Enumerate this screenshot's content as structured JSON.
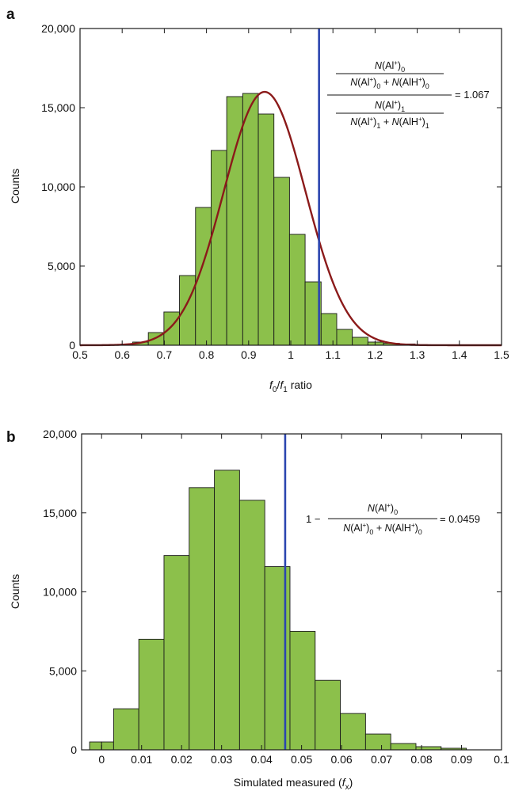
{
  "colors": {
    "bar_fill": "#8cc04b",
    "bar_stroke": "#1a1a1a",
    "fit_curve": "#8b1a1a",
    "marker_line": "#2c46b0",
    "axis": "#1a1a1a"
  },
  "chart_data": [
    {
      "panel_label": "a",
      "type": "bar",
      "bar_form": "histogram",
      "xlabel": {
        "base1": "f",
        "sub1": "0",
        "slash": "/",
        "base2": "f",
        "sub2": "1",
        "rest": " ratio"
      },
      "ylabel": "Counts",
      "xlim": [
        0.5,
        1.5
      ],
      "ylim": [
        0,
        20000
      ],
      "xticks": [
        0.5,
        0.6,
        0.7,
        0.8,
        0.9,
        1,
        1.1,
        1.2,
        1.3,
        1.4,
        1.5
      ],
      "xtick_labels": [
        "0.5",
        "0.6",
        "0.7",
        "0.8",
        "0.9",
        "1",
        "1.1",
        "1.2",
        "1.3",
        "1.4",
        "1.5"
      ],
      "yticks": [
        0,
        5000,
        10000,
        15000,
        20000
      ],
      "ytick_labels": [
        "0",
        "5,000",
        "10,000",
        "15,000",
        "20,000"
      ],
      "bin_edges": [
        0.625,
        0.662,
        0.699,
        0.736,
        0.774,
        0.811,
        0.848,
        0.886,
        0.923,
        0.96,
        0.997,
        1.034,
        1.072,
        1.109,
        1.146,
        1.183,
        1.22,
        1.258,
        1.295,
        1.332
      ],
      "counts": [
        200,
        800,
        2100,
        4400,
        8700,
        12300,
        15700,
        15900,
        14600,
        10600,
        7000,
        4000,
        2000,
        1000,
        500,
        200,
        120,
        80,
        30
      ],
      "fit_curve": {
        "type": "gaussian",
        "mean": 0.938,
        "sd": 0.097,
        "peak": 16000
      },
      "marker_x": 1.067,
      "annotation": {
        "frac1": {
          "top": {
            "n": "N",
            "open": "(Al",
            "sup": "+",
            "close": ")",
            "sub": "0"
          }
        },
        "lines": {
          "num_num": [
            "N",
            "(Al",
            "+",
            ")",
            "0"
          ],
          "num_den": [
            "N",
            "(Al",
            "+",
            ")",
            "0",
            " + ",
            "N",
            "(AlH",
            "+",
            ")",
            "0"
          ],
          "den_num": [
            "N",
            "(Al",
            "+",
            ")",
            "1"
          ],
          "den_den": [
            "N",
            "(Al",
            "+",
            ")",
            "1",
            " + ",
            "N",
            "(AlH",
            "+",
            ")",
            "1"
          ]
        },
        "value_text": "= 1.067"
      }
    },
    {
      "panel_label": "b",
      "type": "bar",
      "bar_form": "histogram",
      "xlabel": {
        "text": "Simulated measured (",
        "base": "f",
        "sub": "x",
        "close": ")"
      },
      "ylabel": "Counts",
      "xlim": [
        -0.005,
        0.1
      ],
      "ylim": [
        0,
        20000
      ],
      "xticks": [
        0,
        0.01,
        0.02,
        0.03,
        0.04,
        0.05,
        0.06,
        0.07,
        0.08,
        0.09,
        0.1
      ],
      "xtick_labels": [
        "0",
        "0.01",
        "0.02",
        "0.03",
        "0.04",
        "0.05",
        "0.06",
        "0.07",
        "0.08",
        "0.09",
        "0.1"
      ],
      "yticks": [
        0,
        5000,
        10000,
        15000,
        20000
      ],
      "ytick_labels": [
        "0",
        "5,000",
        "10,000",
        "15,000",
        "20,000"
      ],
      "bin_edges": [
        -0.003,
        0.0,
        0.003,
        0.0093,
        0.0156,
        0.0219,
        0.0282,
        0.0345,
        0.0408,
        0.0471,
        0.0534,
        0.0597,
        0.066,
        0.0723,
        0.0786,
        0.0849,
        0.0912
      ],
      "counts": [
        500,
        500,
        2600,
        7000,
        12300,
        16600,
        17700,
        15800,
        11600,
        7500,
        4400,
        2300,
        1000,
        400,
        200,
        100
      ],
      "marker_x": 0.0459,
      "annotation": {
        "prefix": "1 −",
        "lines": {
          "num": [
            "N",
            "(Al",
            "+",
            ")",
            "0"
          ],
          "den": [
            "N",
            "(Al",
            "+",
            ")",
            "0",
            " + ",
            "N",
            "(AlH",
            "+",
            ")",
            "0"
          ]
        },
        "value_text": "= 0.0459"
      }
    }
  ]
}
